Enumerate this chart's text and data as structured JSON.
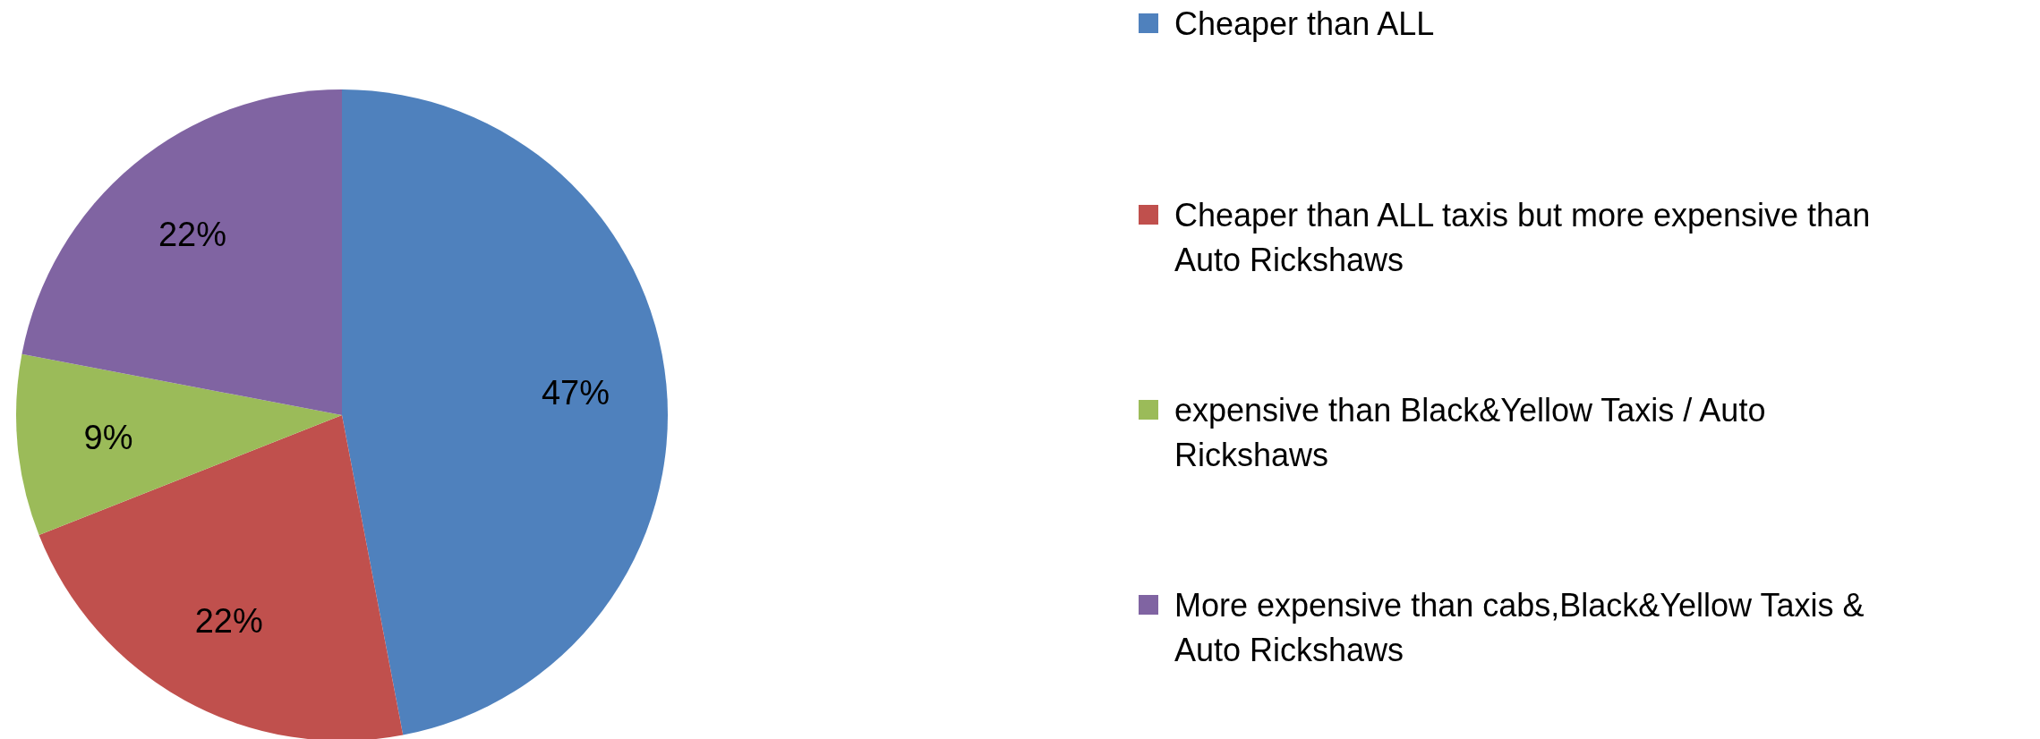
{
  "chart_data": {
    "type": "pie",
    "categories": [
      "Cheaper than ALL",
      "Cheaper than ALL taxis but more expensive than Auto Rickshaws",
      "expensive than Black&Yellow Taxis / Auto Rickshaws",
      "More expensive than cabs,Black&Yellow Taxis & Auto Rickshaws"
    ],
    "values": [
      47,
      22,
      9,
      22
    ],
    "colors": [
      "#4f81bd",
      "#c0504d",
      "#9bbb59",
      "#8064a2"
    ],
    "value_labels": [
      "47%",
      "22%",
      "9%",
      "22%"
    ],
    "legend": "right"
  }
}
